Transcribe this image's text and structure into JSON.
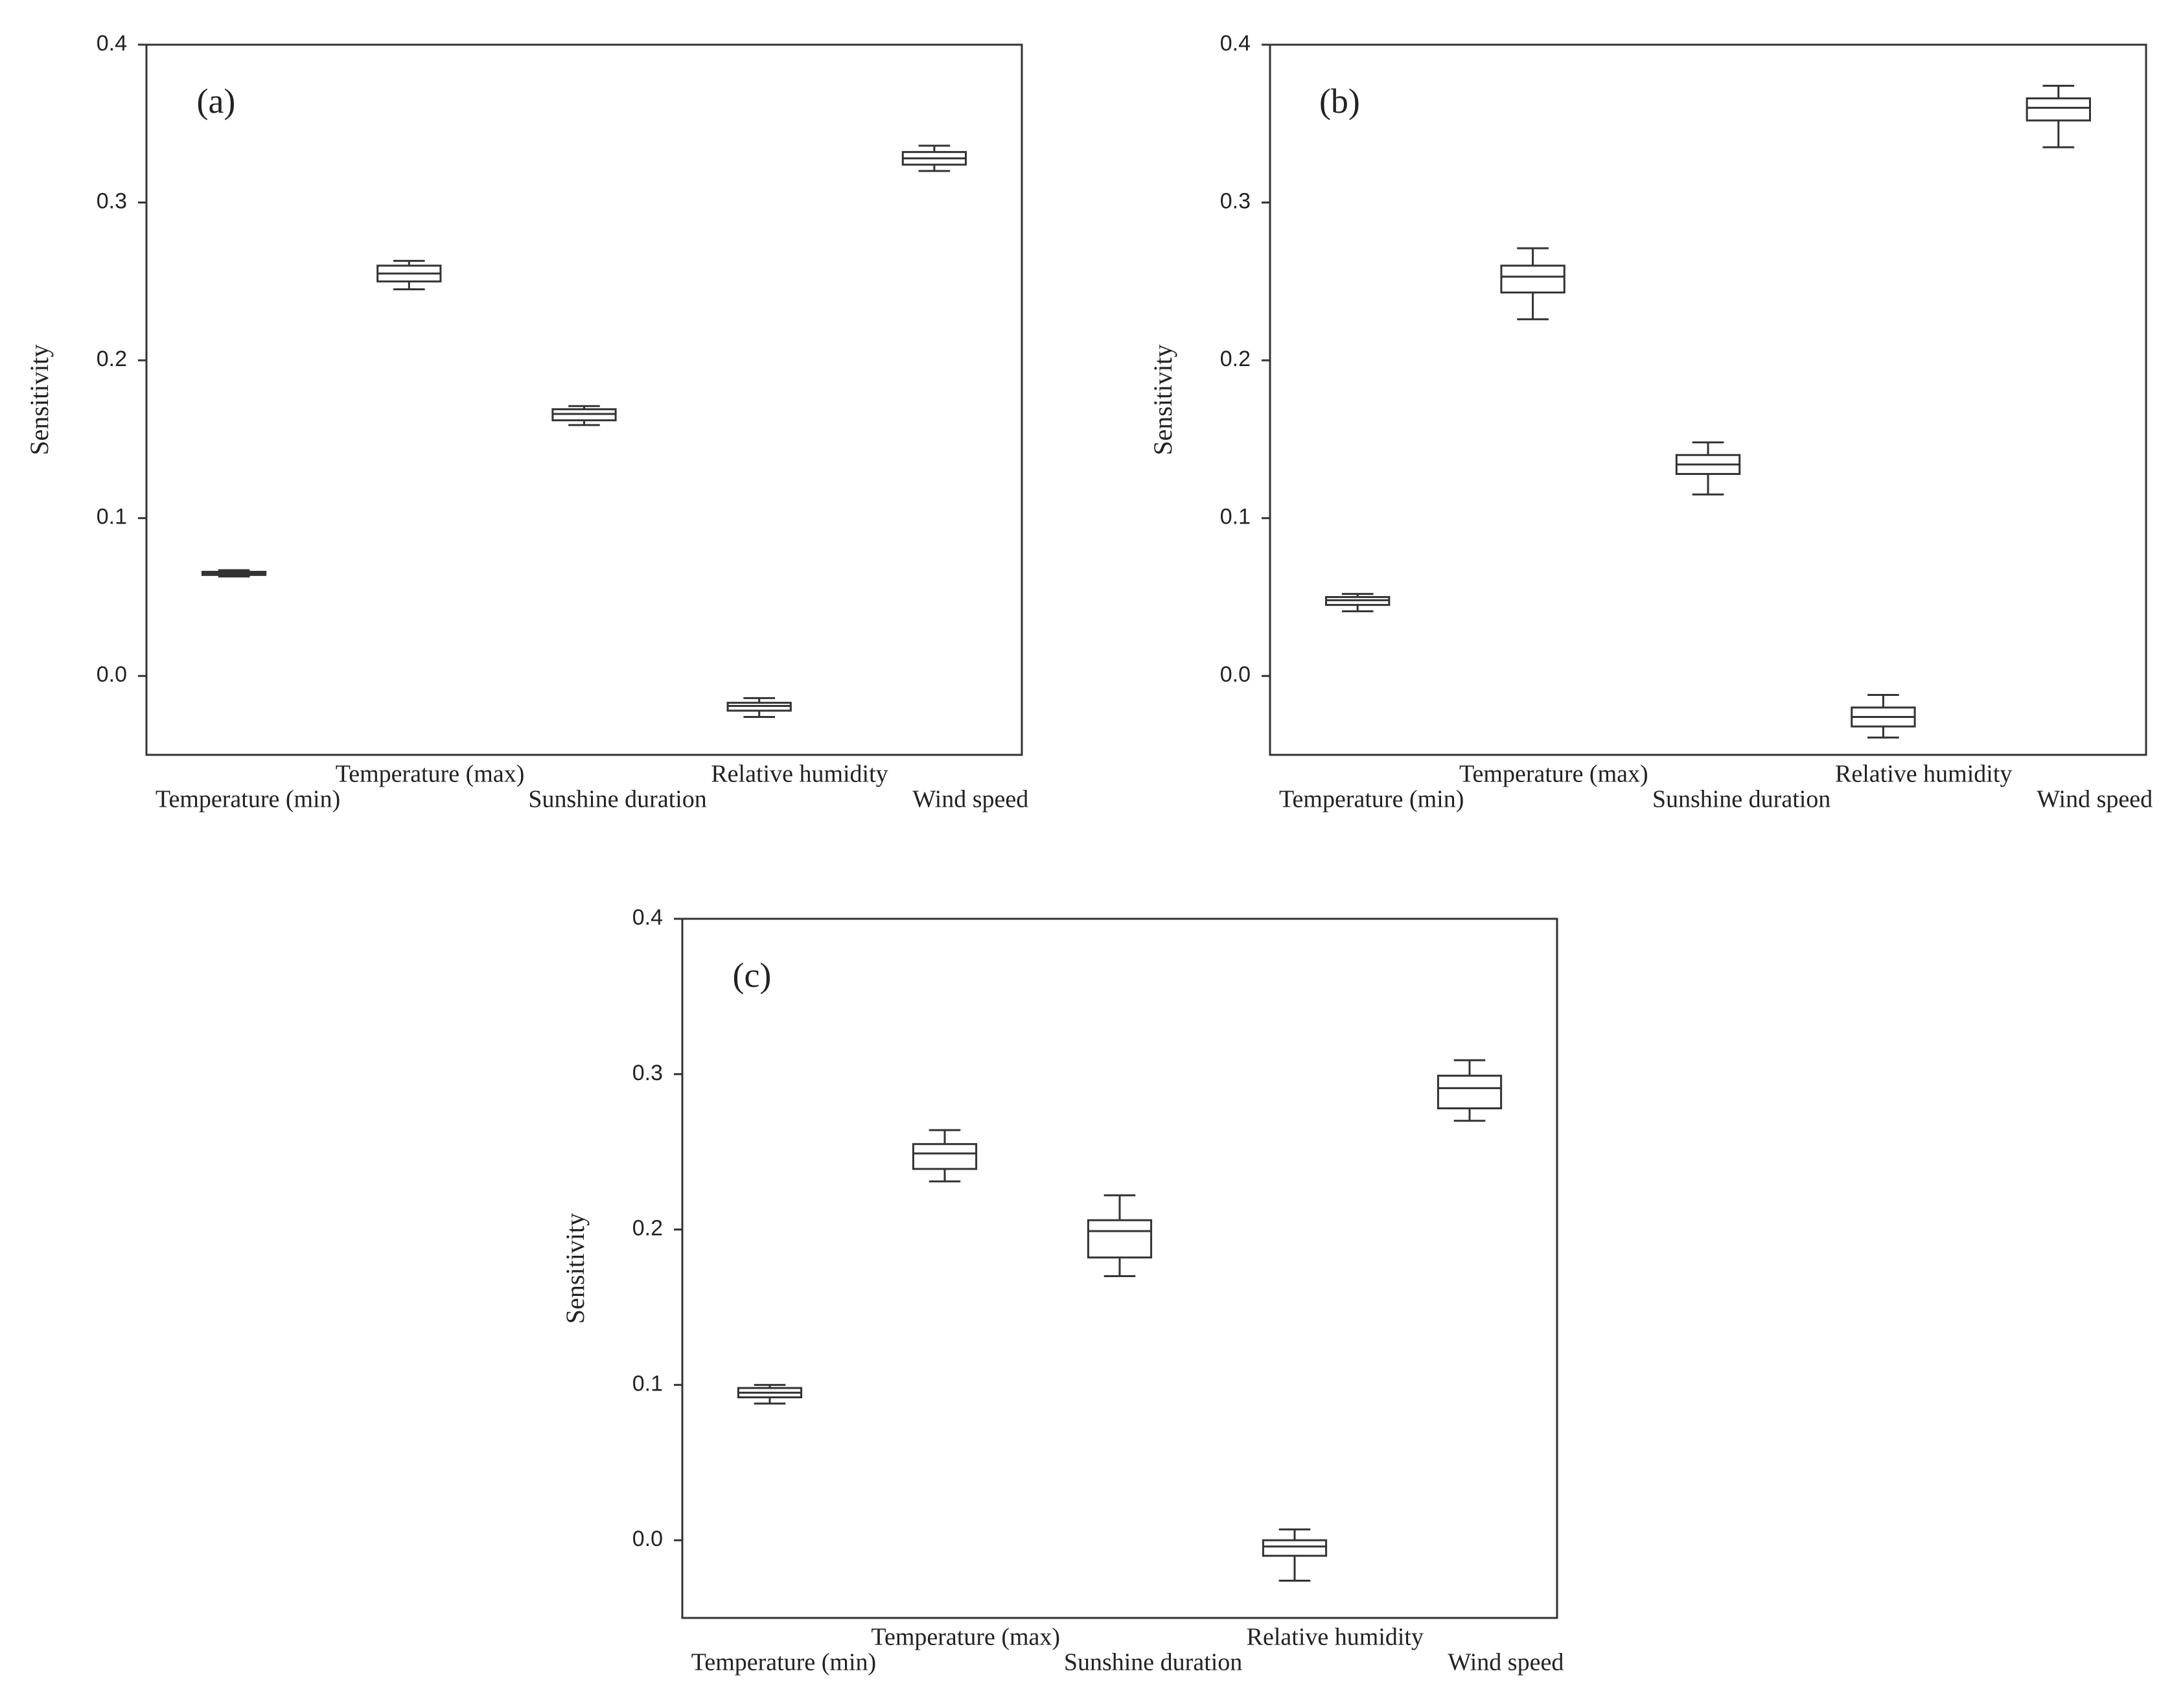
{
  "chart_data": [
    {
      "type": "box",
      "label": "(a)",
      "ylabel": "Sensitivity",
      "categories": [
        "Temperature (min)",
        "Temperature (max)",
        "Sunshine duration",
        "Relative humidity",
        "Wind speed"
      ],
      "boxes": [
        {
          "min": 0.063,
          "q1": 0.064,
          "median": 0.065,
          "q3": 0.066,
          "max": 0.067
        },
        {
          "min": 0.245,
          "q1": 0.25,
          "median": 0.255,
          "q3": 0.26,
          "max": 0.263
        },
        {
          "min": 0.159,
          "q1": 0.162,
          "median": 0.166,
          "q3": 0.169,
          "max": 0.171
        },
        {
          "min": -0.026,
          "q1": -0.022,
          "median": -0.019,
          "q3": -0.017,
          "max": -0.014
        },
        {
          "min": 0.32,
          "q1": 0.324,
          "median": 0.328,
          "q3": 0.332,
          "max": 0.336
        }
      ],
      "ylim": [
        -0.05,
        0.4
      ],
      "yticks": [
        {
          "value": 0,
          "label": "0.0"
        },
        0.1,
        0.2,
        0.3,
        0.4
      ],
      "color": "#333333"
    },
    {
      "type": "box",
      "label": "(b)",
      "ylabel": "Sensitivity",
      "categories": [
        "Temperature (min)",
        "Temperature (max)",
        "Sunshine duration",
        "Relative humidity",
        "Wind speed"
      ],
      "boxes": [
        {
          "min": 0.041,
          "q1": 0.045,
          "median": 0.048,
          "q3": 0.05,
          "max": 0.052
        },
        {
          "min": 0.226,
          "q1": 0.243,
          "median": 0.253,
          "q3": 0.26,
          "max": 0.271
        },
        {
          "min": 0.115,
          "q1": 0.128,
          "median": 0.134,
          "q3": 0.14,
          "max": 0.148
        },
        {
          "min": -0.039,
          "q1": -0.032,
          "median": -0.026,
          "q3": -0.02,
          "max": -0.012
        },
        {
          "min": 0.335,
          "q1": 0.352,
          "median": 0.36,
          "q3": 0.366,
          "max": 0.374
        }
      ],
      "ylim": [
        -0.05,
        0.4
      ],
      "yticks": [
        {
          "value": 0,
          "label": "0.0"
        },
        0.1,
        0.2,
        0.3,
        0.4
      ],
      "color": "#333333"
    },
    {
      "type": "box",
      "label": "(c)",
      "ylabel": "Sensitivity",
      "categories": [
        "Temperature (min)",
        "Temperature (max)",
        "Sunshine duration",
        "Relative humidity",
        "Wind speed"
      ],
      "boxes": [
        {
          "min": 0.088,
          "q1": 0.092,
          "median": 0.095,
          "q3": 0.098,
          "max": 0.1
        },
        {
          "min": 0.231,
          "q1": 0.239,
          "median": 0.249,
          "q3": 0.255,
          "max": 0.264
        },
        {
          "min": 0.17,
          "q1": 0.182,
          "median": 0.199,
          "q3": 0.206,
          "max": 0.222
        },
        {
          "min": -0.026,
          "q1": -0.01,
          "median": -0.004,
          "q3": 0.0,
          "max": 0.007
        },
        {
          "min": 0.27,
          "q1": 0.278,
          "median": 0.291,
          "q3": 0.299,
          "max": 0.309
        }
      ],
      "ylim": [
        -0.05,
        0.4
      ],
      "yticks": [
        {
          "value": 0,
          "label": "0.0"
        },
        0.1,
        0.2,
        0.3,
        0.4
      ],
      "color": "#333333"
    }
  ]
}
